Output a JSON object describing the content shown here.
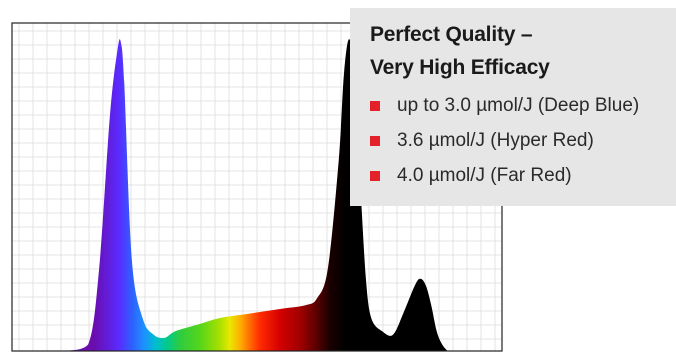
{
  "colors": {
    "grid": "#dcdcdc",
    "frame": "#222222",
    "bullet": "#e4202b",
    "panel_bg": "#e6e6e6"
  },
  "panel": {
    "title_line1": "Perfect Quality –",
    "title_line2": "Very High Efficacy",
    "items": [
      {
        "text": "up to 3.0 µmol/J (Deep Blue)"
      },
      {
        "text": "3.6 µmol/J (Hyper Red)"
      },
      {
        "text": "4.0 µmol/J (Far Red)"
      }
    ]
  },
  "chart_data": {
    "type": "area",
    "title": "",
    "xlabel": "",
    "ylabel": "",
    "grid": true,
    "legend": "none",
    "x_unit": "nm",
    "xlim": [
      350,
      800
    ],
    "ylim": [
      0,
      1.0
    ],
    "x": [
      400,
      420,
      430,
      440,
      447,
      450,
      453,
      460,
      470,
      480,
      490,
      500,
      520,
      540,
      560,
      580,
      600,
      620,
      630,
      640,
      650,
      655,
      660,
      665,
      670,
      675,
      680,
      690,
      700,
      710,
      720,
      725,
      730,
      735,
      740,
      745,
      750
    ],
    "y": [
      0.0,
      0.02,
      0.25,
      0.72,
      0.92,
      0.94,
      0.82,
      0.28,
      0.1,
      0.05,
      0.04,
      0.06,
      0.08,
      0.1,
      0.11,
      0.12,
      0.13,
      0.14,
      0.16,
      0.25,
      0.58,
      0.85,
      0.95,
      0.8,
      0.5,
      0.22,
      0.1,
      0.06,
      0.05,
      0.12,
      0.2,
      0.22,
      0.2,
      0.14,
      0.06,
      0.02,
      0.0
    ]
  }
}
